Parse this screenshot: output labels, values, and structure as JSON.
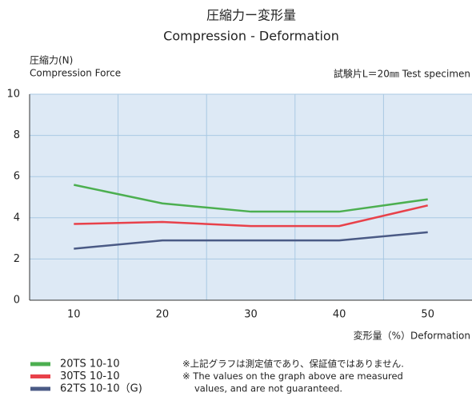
{
  "chart_data": {
    "type": "line",
    "title": "圧縮力ー変形量",
    "subtitle": "Compression - Deformation",
    "y_label": [
      "圧縮力(N)",
      "Compression Force"
    ],
    "annotation": "試験片L＝20㎜ Test specimen",
    "x_label": "変形量（%）Deformation",
    "categories": [
      "10",
      "20",
      "30",
      "40",
      "50"
    ],
    "series": [
      {
        "name": "20TS 10-10",
        "color": "#4caf50",
        "values": [
          5.6,
          4.7,
          4.3,
          4.3,
          4.9
        ]
      },
      {
        "name": "30TS 10-10",
        "color": "#e8414a",
        "values": [
          3.7,
          3.8,
          3.6,
          3.6,
          4.6
        ]
      },
      {
        "name": "62TS 10-10（G)",
        "color": "#4a5a85",
        "values": [
          2.5,
          2.9,
          2.9,
          2.9,
          3.3
        ]
      }
    ],
    "ylim": [
      0,
      10
    ],
    "yticks": [
      0,
      2,
      4,
      6,
      8,
      10
    ],
    "grid": true,
    "notes": [
      "※上記グラフは測定値であり、保証値ではありません.",
      "※ The values on the graph above are measured",
      "values, and are not guaranteed."
    ]
  }
}
